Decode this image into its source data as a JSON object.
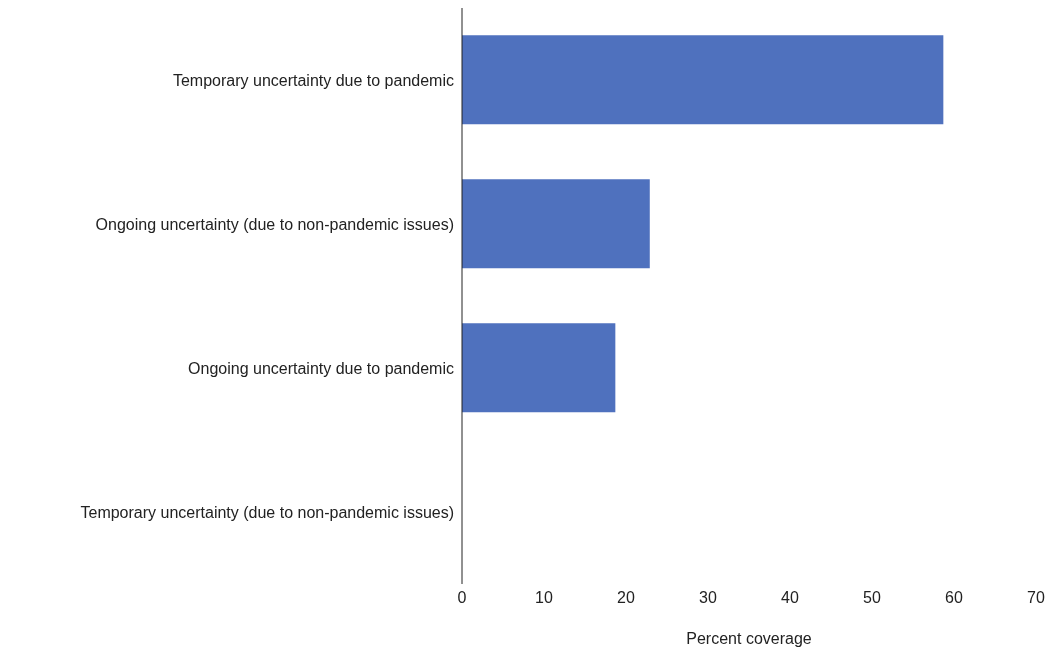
{
  "chart_data": {
    "type": "bar",
    "orientation": "horizontal",
    "xlabel": "Percent coverage",
    "categories": [
      "Temporary uncertainty due to pandemic",
      "Ongoing uncertainty (due to non-pandemic issues)",
      "Ongoing uncertainty due to pandemic",
      "Temporary uncertainty (due to non-pandemic issues)"
    ],
    "values": [
      58.7,
      22.9,
      18.7,
      0
    ],
    "color": "#4f71be",
    "xlim": [
      0,
      70
    ],
    "xticks": [
      0,
      10,
      20,
      30,
      40,
      50,
      60,
      70
    ],
    "grid": false,
    "legend": false
  }
}
